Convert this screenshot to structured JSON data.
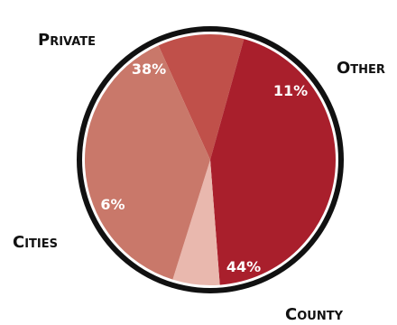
{
  "chart_data": {
    "type": "pie",
    "categories": [
      "Other",
      "County",
      "Cities",
      "Private"
    ],
    "values": [
      11,
      44,
      6,
      38
    ],
    "value_labels": [
      "11%",
      "44%",
      "6%",
      "38%"
    ],
    "colors": [
      "#c0504a",
      "#a91f2c",
      "#e9b8ae",
      "#c9786a"
    ],
    "border_colors": [
      "#111111",
      "#ffffff"
    ],
    "title": "",
    "legend": "none"
  }
}
